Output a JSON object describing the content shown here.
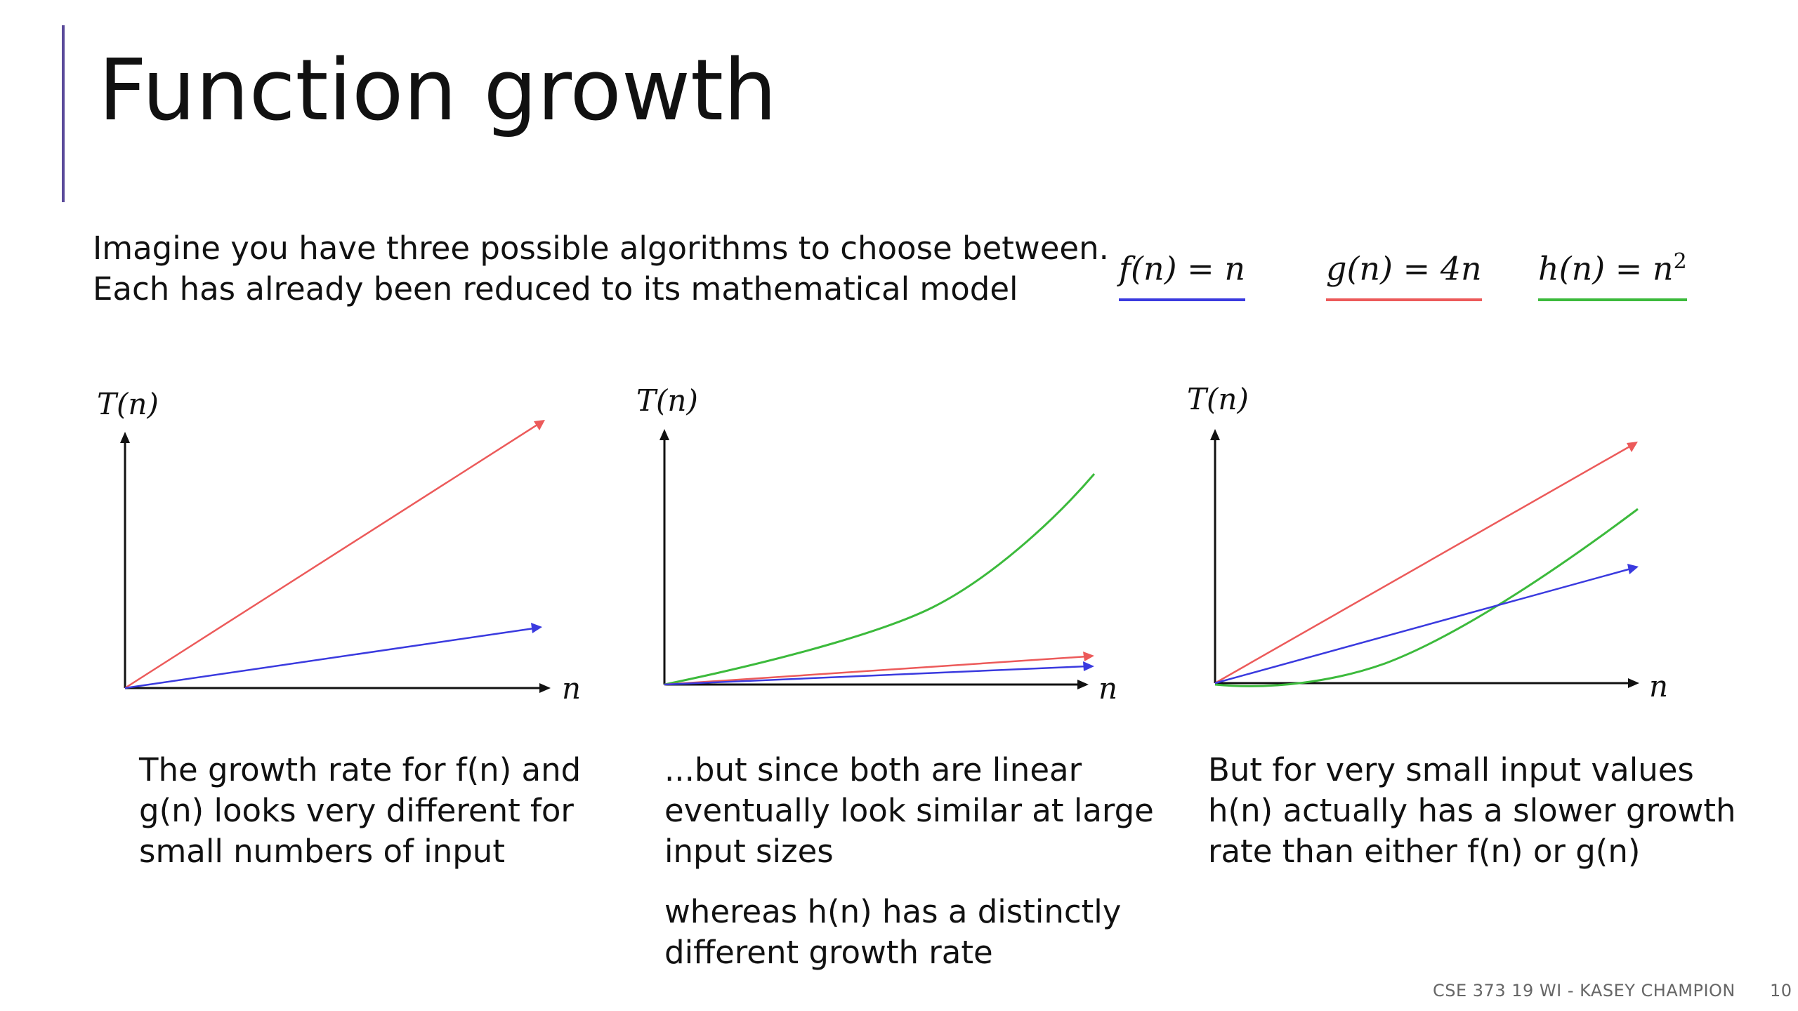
{
  "slide": {
    "title": "Function growth",
    "intro": [
      "Imagine you have three possible algorithms to choose between.",
      "Each has already been reduced to its mathematical model"
    ],
    "legend": [
      {
        "id": "f",
        "lhs": "f(n) = n",
        "sup": "",
        "color": "#3a3adf"
      },
      {
        "id": "g",
        "lhs": "g(n) = 4n",
        "sup": "",
        "color": "#ec5a5a"
      },
      {
        "id": "h",
        "lhs": "h(n) = n",
        "sup": "2",
        "color": "#3cba3c"
      }
    ],
    "axes": {
      "y_label": "T(n)",
      "x_label": "n"
    },
    "captions": [
      {
        "paragraphs": [
          [
            "The growth rate for f(n) and",
            "g(n) looks very different for",
            "small numbers of input"
          ]
        ]
      },
      {
        "paragraphs": [
          [
            "...but since both are linear",
            "eventually look similar at large",
            "input sizes"
          ],
          [
            "whereas h(n) has a distinctly",
            "different growth rate"
          ]
        ]
      },
      {
        "paragraphs": [
          [
            "But for very small input values",
            "h(n) actually has a slower growth",
            "rate than either f(n) or g(n)"
          ]
        ]
      }
    ],
    "footer": {
      "course": "CSE 373 19 WI - KASEY CHAMPION",
      "page": "10"
    }
  },
  "chart_data": [
    {
      "type": "line",
      "title": "",
      "xlabel": "n",
      "ylabel": "T(n)",
      "grid": false,
      "series": [
        {
          "name": "g(n) = 4n",
          "shape": "linear",
          "color": "#ec5a5a"
        },
        {
          "name": "f(n) = n",
          "shape": "linear",
          "color": "#3a3adf"
        }
      ]
    },
    {
      "type": "line",
      "title": "",
      "xlabel": "n",
      "ylabel": "T(n)",
      "grid": false,
      "series": [
        {
          "name": "h(n) = n²",
          "shape": "quadratic",
          "color": "#3cba3c"
        },
        {
          "name": "g(n) = 4n",
          "shape": "linear",
          "color": "#ec5a5a"
        },
        {
          "name": "f(n) = n",
          "shape": "linear",
          "color": "#3a3adf"
        }
      ]
    },
    {
      "type": "line",
      "title": "",
      "xlabel": "n",
      "ylabel": "T(n)",
      "grid": false,
      "series": [
        {
          "name": "g(n) = 4n",
          "shape": "linear",
          "color": "#ec5a5a"
        },
        {
          "name": "h(n) = n²",
          "shape": "quadratic",
          "color": "#3cba3c"
        },
        {
          "name": "f(n) = n",
          "shape": "linear",
          "color": "#3a3adf"
        }
      ]
    }
  ]
}
